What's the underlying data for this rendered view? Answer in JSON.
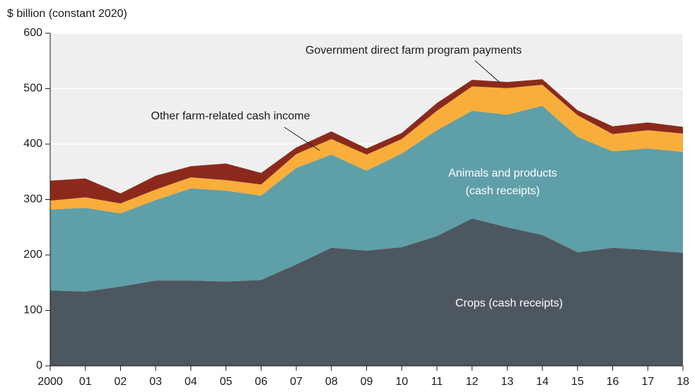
{
  "chart_data": {
    "type": "stacked_area",
    "y_axis_label": "$ billion (constant 2020)",
    "categories": [
      "2000",
      "01",
      "02",
      "03",
      "04",
      "05",
      "06",
      "07",
      "08",
      "09",
      "10",
      "11",
      "12",
      "13",
      "14",
      "15",
      "16",
      "17",
      "18"
    ],
    "series": [
      {
        "name": "Crops (cash receipts)",
        "color": "#4d5760",
        "values": [
          136,
          134,
          143,
          154,
          154,
          152,
          155,
          183,
          213,
          208,
          214,
          234,
          266,
          250,
          236,
          205,
          213,
          209,
          204
        ]
      },
      {
        "name": "Animals and products (cash receipts)",
        "color": "#5f9fa8",
        "values": [
          146,
          151,
          132,
          145,
          166,
          164,
          152,
          174,
          168,
          144,
          169,
          191,
          194,
          203,
          233,
          208,
          174,
          183,
          182
        ]
      },
      {
        "name": "Other farm-related cash income",
        "color": "#f9ae3b",
        "values": [
          16,
          19,
          18,
          19,
          20,
          19,
          20,
          25,
          28,
          29,
          26,
          35,
          44,
          48,
          38,
          39,
          31,
          33,
          33
        ]
      },
      {
        "name": "Government direct farm program payments",
        "color": "#8b2a1c",
        "values": [
          36,
          34,
          18,
          25,
          20,
          30,
          21,
          12,
          14,
          11,
          11,
          14,
          12,
          11,
          10,
          9,
          14,
          14,
          12
        ]
      }
    ],
    "annotations": [
      {
        "lines": [
          "Crops (cash receipts)"
        ]
      },
      {
        "lines": [
          "Animals and products",
          "(cash receipts)"
        ]
      },
      {
        "lines": [
          "Other farm-related cash income"
        ]
      },
      {
        "lines": [
          "Government direct farm program payments"
        ]
      }
    ],
    "ylim": [
      0,
      600
    ],
    "yticks": [
      0,
      100,
      200,
      300,
      400,
      500,
      600
    ],
    "grid": true
  }
}
